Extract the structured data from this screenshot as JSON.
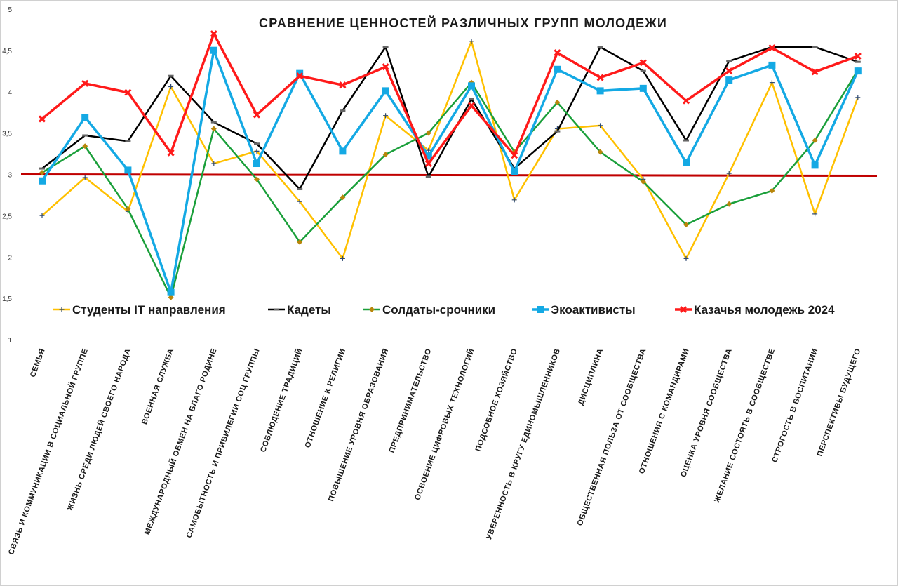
{
  "chart_data": {
    "type": "line",
    "title": "СРАВНЕНИЕ ЦЕННОСТЕЙ РАЗЛИЧНЫХ ГРУПП МОЛОДЕЖИ",
    "xlabel": "",
    "ylabel": "",
    "ylim": [
      1,
      5
    ],
    "yticks": [
      "1",
      "1,5",
      "2",
      "2,5",
      "3",
      "3,5",
      "4",
      "4,5",
      "5"
    ],
    "grid": false,
    "legend_position": "bottom-inside",
    "reference_line": {
      "value": 3,
      "color": "#c00000"
    },
    "categories": [
      "СЕМЬЯ",
      "СВЯЗЬ И КОММУНИКАЦИИ В СОЦИАЛЬНОЙ ГРУППЕ",
      "ЖИЗНЬ СРЕДИ ЛЮДЕЙ СВОЕГО НАРОДА",
      "ВОЕННАЯ СЛУЖБА",
      "МЕЖДУНАРОДНЫЙ ОБМЕН НА БЛАГО РОДИНЕ",
      "САМОБЫТНОСТЬ И ПРИВИЛЕГИИ СОЦ ГРУППЫ",
      "СОБЛЮДЕНИЕ ТРАДИЦИЙ",
      "ОТНОШЕНИЕ К РЕЛИГИИ",
      "ПОВЫШЕНИЕ УРОВНЯ ОБРАЗОВАНИЯ",
      "ПРЕДПРИНИМАТЕЛЬСТВО",
      "ОСВОЕНИЕ ЦИФРОВЫХ ТЕХНОЛОГИЙ",
      "ПОДСОБНОЕ ХОЗЯЙСТВО",
      "УВЕРЕННОСТЬ В КРУГУ ЕДИНОМЫШЛЕННИКОВ",
      "ДИСЦИПЛИНА",
      "ОБЩЕСТВЕННАЯ ПОЛЬЗА ОТ СООБЩЕСТВА",
      "ОТНОШЕНИЯ С КОМАНДИРАМИ",
      "ОЦЕНКА УРОВНЯ СООБЩЕСТВА",
      "ЖЕЛАНИЕ СОСТОЯТЬ В СООБЩЕСТВЕ",
      "СТРОГОСТЬ В ВОСПИТАНИИ",
      "ПЕРСПЕКТИВЫ БУДУЩЕГО"
    ],
    "series": [
      {
        "name": "Студенты IT направления",
        "color": "#ffc000",
        "marker": "plus",
        "values": [
          2.51,
          2.97,
          2.56,
          4.07,
          3.14,
          3.29,
          2.68,
          1.99,
          3.72,
          3.3,
          4.62,
          2.7,
          3.56,
          3.6,
          2.95,
          1.99,
          3.02,
          4.12,
          2.53,
          3.94
        ]
      },
      {
        "name": "Кадеты",
        "color": "#000000",
        "marker": "dash",
        "values": [
          3.08,
          3.48,
          3.41,
          4.2,
          3.64,
          3.38,
          2.83,
          3.78,
          4.55,
          2.98,
          3.92,
          3.08,
          3.53,
          4.55,
          4.26,
          3.42,
          4.38,
          4.55,
          4.55,
          4.37
        ]
      },
      {
        "name": "Солдаты-срочники",
        "color": "#1a9f3a",
        "marker": "diamond",
        "values": [
          3.03,
          3.35,
          2.59,
          1.52,
          3.56,
          2.95,
          2.19,
          2.73,
          3.25,
          3.51,
          4.12,
          3.28,
          3.88,
          3.28,
          2.92,
          2.4,
          2.65,
          2.81,
          3.42,
          4.27
        ]
      },
      {
        "name": "Экоактивисты",
        "color": "#14a9e4",
        "marker": "square",
        "values": [
          2.93,
          3.7,
          3.06,
          1.58,
          4.51,
          3.14,
          4.23,
          3.29,
          4.02,
          3.23,
          4.08,
          3.04,
          4.28,
          4.02,
          4.05,
          3.15,
          4.15,
          4.33,
          3.12,
          4.26
        ]
      },
      {
        "name": "Казачья молодежь 2024",
        "color": "#ff1a1a",
        "marker": "x",
        "values": [
          3.68,
          4.11,
          4.0,
          3.27,
          4.71,
          3.73,
          4.2,
          4.09,
          4.31,
          3.14,
          3.84,
          3.24,
          4.48,
          4.18,
          4.36,
          3.9,
          4.26,
          4.54,
          4.25,
          4.44
        ]
      }
    ]
  }
}
